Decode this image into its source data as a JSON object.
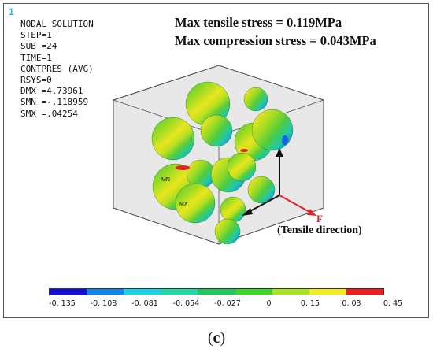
{
  "window_number": "1",
  "info_lines": [
    "NODAL SOLUTION",
    "STEP=1",
    "SUB =24",
    "TIME=1",
    "CONTPRES (AVG)",
    "RSYS=0",
    "DMX =4.73961",
    "SMN =-.118959",
    "SMX =.04254"
  ],
  "stress": {
    "tensile": "Max tensile stress = 0.119MPa",
    "compression": "Max compression stress = 0.043MPa"
  },
  "markers": {
    "min": "MN",
    "max": "MX"
  },
  "force": {
    "label": "F",
    "direction": "(Tensile direction)"
  },
  "colorbar": {
    "colors": [
      "#1010d8",
      "#0d86e8",
      "#18d2ee",
      "#21d9a8",
      "#1dc75e",
      "#3fd62a",
      "#a6e51f",
      "#f2ee1e",
      "#ee1c1c"
    ],
    "tick_labels": [
      "-0. 135",
      "-0. 108",
      "-0. 081",
      "-0. 054",
      "-0. 027",
      "0",
      "0. 15",
      "0. 03",
      "0. 45"
    ]
  },
  "caption_letter": "c",
  "colors": {
    "arrow_black": "#111111",
    "arrow_red": "#e52222",
    "window_number": "#29b6e6"
  }
}
